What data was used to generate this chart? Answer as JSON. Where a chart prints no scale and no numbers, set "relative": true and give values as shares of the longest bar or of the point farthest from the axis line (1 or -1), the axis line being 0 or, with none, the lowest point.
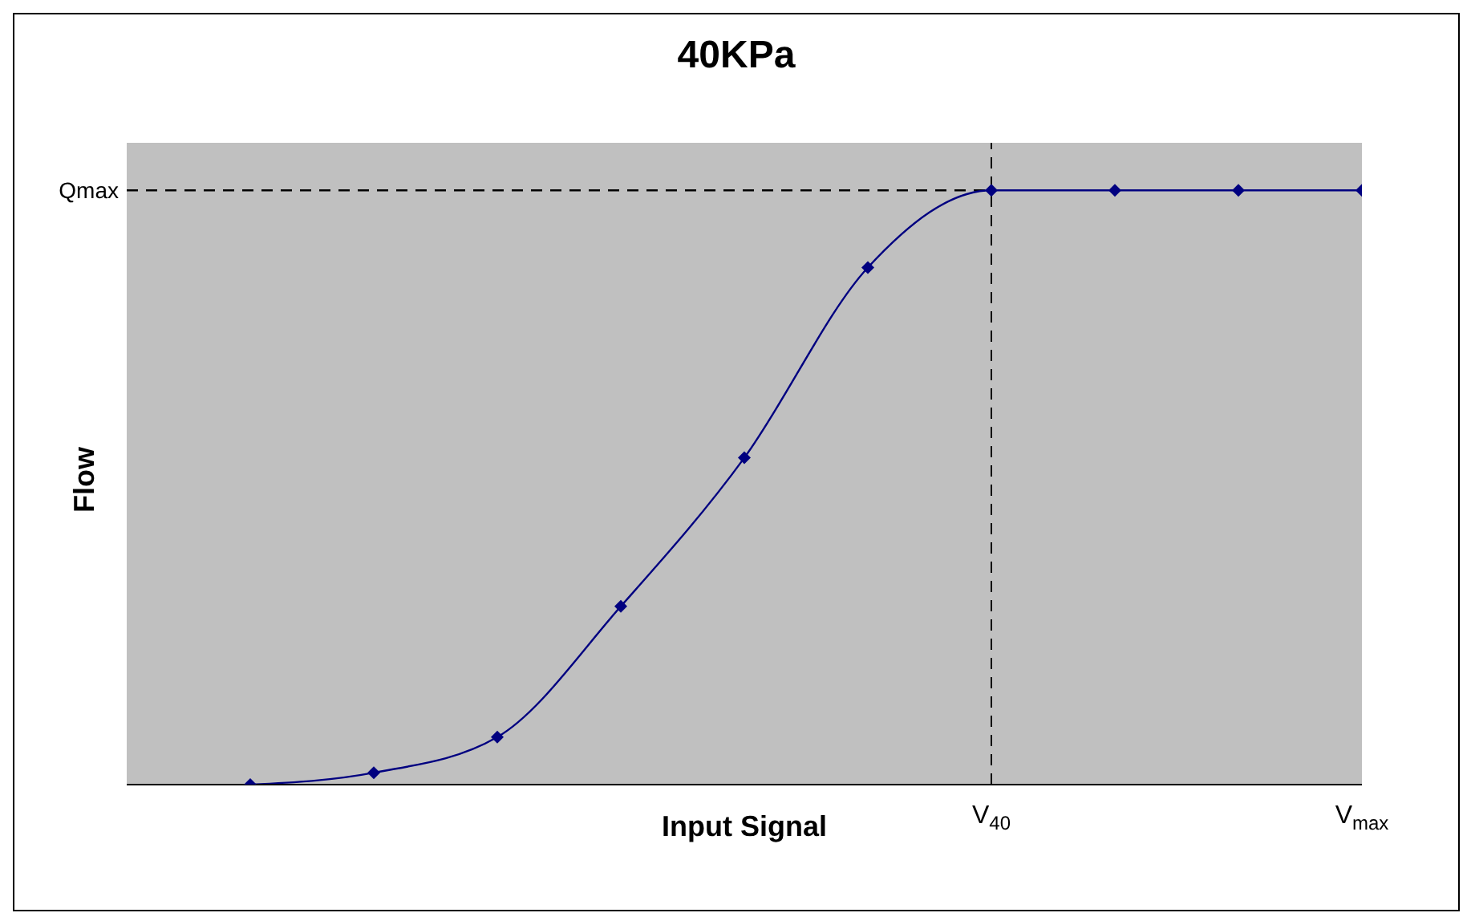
{
  "chart_data": {
    "type": "line",
    "title": "40KPa",
    "xlabel": "Input Signal",
    "ylabel": "Flow",
    "relative": true,
    "categories": [
      null,
      null,
      null,
      null,
      null,
      null,
      null,
      "V$_{40}$",
      null,
      null,
      "V$_{max}$"
    ],
    "series": [
      {
        "color": "#000080",
        "values": [
          null,
          0,
          0.02,
          0.08,
          0.3,
          0.55,
          0.87,
          1,
          1,
          1,
          1
        ]
      }
    ],
    "ref_lines": [
      {
        "axis": "y",
        "value": 1,
        "label": "Qmax",
        "line_style": "dashed",
        "color": "#000000"
      },
      {
        "axis": "x",
        "value": "V$_{40}$",
        "line_style": "dashed",
        "color": "#000000"
      }
    ],
    "marker": "diamond",
    "line_style": "solid",
    "grid": false,
    "legend": false
  }
}
